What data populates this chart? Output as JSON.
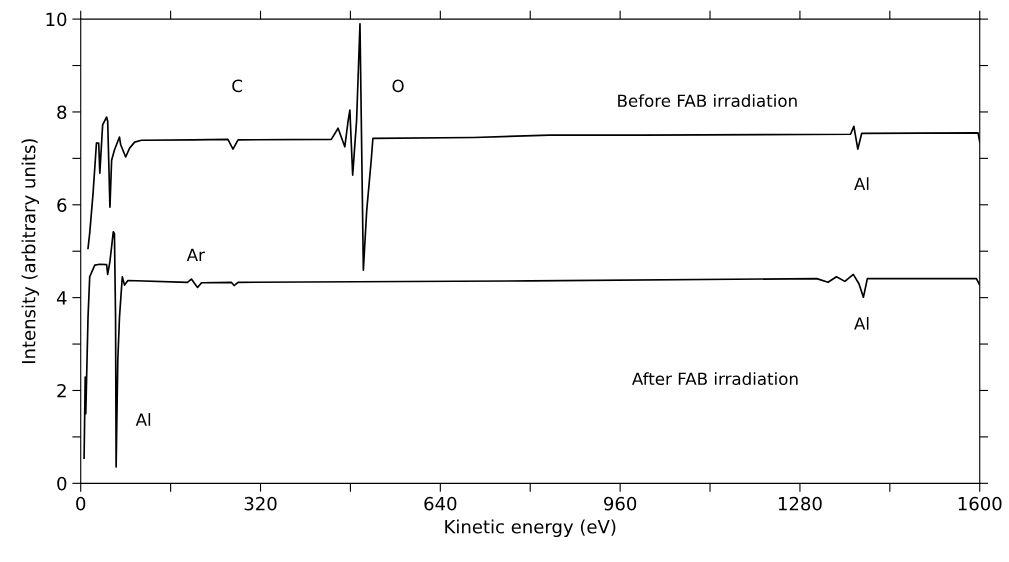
{
  "chart_data": {
    "type": "line",
    "xlabel": "Kinetic energy (eV)",
    "ylabel": "Intensity (arbitrary units)",
    "xlim": [
      0,
      1600
    ],
    "ylim": [
      0,
      10
    ],
    "xticks": [
      0,
      {
        "value": 160,
        "label": null
      },
      320,
      {
        "value": 480,
        "label": null
      },
      640,
      {
        "value": 800,
        "label": null
      },
      960,
      {
        "value": 1120,
        "label": null
      },
      1280,
      {
        "value": 1440,
        "label": null
      },
      1600
    ],
    "yticks": [
      0,
      {
        "value": 1,
        "label": null
      },
      2,
      {
        "value": 3,
        "label": null
      },
      4,
      {
        "value": 5,
        "label": null
      },
      6,
      {
        "value": 7,
        "label": null
      },
      8,
      {
        "value": 9,
        "label": null
      },
      10
    ],
    "grid": false,
    "legend": false,
    "marker": "none",
    "line_style": "solid",
    "series": [
      {
        "color": "#000000",
        "x": [
          13,
          16,
          22,
          28,
          32,
          34,
          39,
          46,
          48,
          52,
          55,
          60,
          69,
          71,
          80,
          87,
          96,
          108,
          200,
          262,
          271,
          280,
          446,
          458,
          470,
          476,
          479,
          484,
          491,
          497,
          503,
          509,
          517,
          520,
          700,
          835,
          1000,
          1370,
          1376,
          1383,
          1390,
          1597,
          1600
        ],
        "values": [
          5.06,
          5.39,
          6.25,
          7.33,
          7.33,
          6.68,
          7.72,
          7.89,
          7.8,
          5.95,
          6.96,
          7.18,
          7.46,
          7.3,
          7.03,
          7.22,
          7.35,
          7.39,
          7.4,
          7.41,
          7.2,
          7.4,
          7.41,
          7.65,
          7.25,
          7.82,
          8.04,
          6.64,
          7.82,
          9.9,
          4.59,
          5.88,
          6.96,
          7.43,
          7.45,
          7.5,
          7.5,
          7.52,
          7.69,
          7.2,
          7.54,
          7.55,
          7.35
        ]
      },
      {
        "color": "#000000",
        "x": [
          6,
          8,
          9,
          13,
          16,
          25,
          34,
          46,
          48,
          52,
          58,
          60,
          62,
          63,
          66,
          69,
          74,
          78,
          84,
          190,
          197,
          203,
          208,
          215,
          268,
          273,
          280,
          800,
          1310,
          1330,
          1345,
          1360,
          1375,
          1385,
          1393,
          1400,
          1594,
          1600
        ],
        "values": [
          0.54,
          2.29,
          1.5,
          3.58,
          4.45,
          4.7,
          4.72,
          4.71,
          4.5,
          4.78,
          5.42,
          5.38,
          3.58,
          0.35,
          2.65,
          3.58,
          4.45,
          4.27,
          4.37,
          4.33,
          4.4,
          4.3,
          4.22,
          4.32,
          4.33,
          4.26,
          4.33,
          4.36,
          4.41,
          4.33,
          4.45,
          4.35,
          4.5,
          4.3,
          4.01,
          4.41,
          4.41,
          4.27
        ]
      }
    ],
    "annotations": [
      "C",
      "O",
      "Before FAB irradiation",
      "Al",
      "Ar",
      "Al",
      "After FAB irradiation",
      "Al"
    ]
  }
}
